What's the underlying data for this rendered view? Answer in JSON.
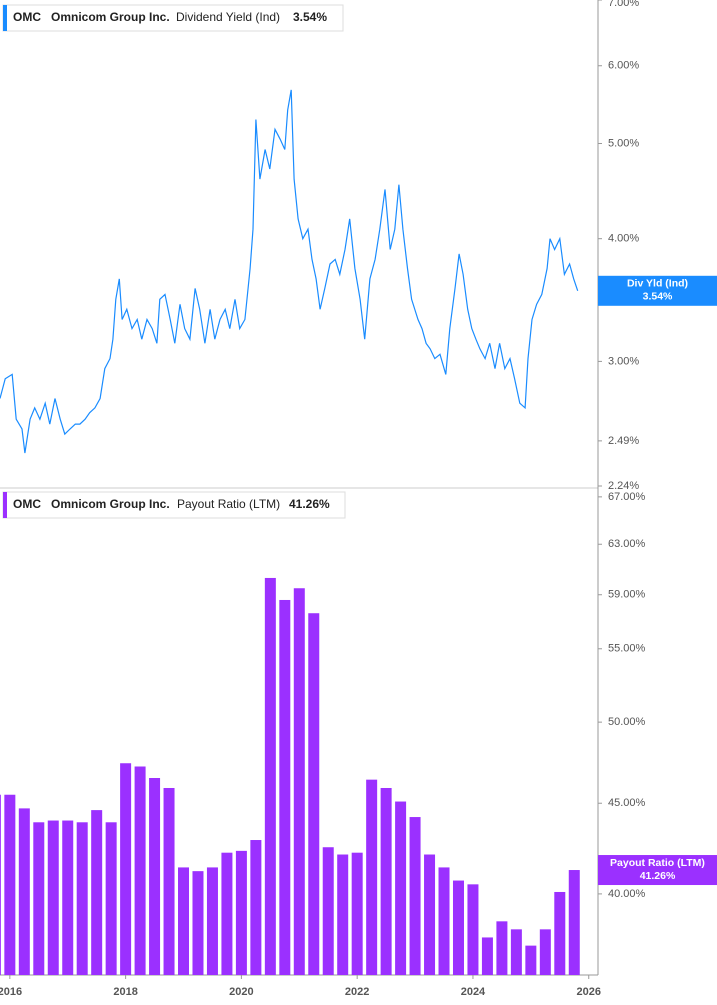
{
  "chart_data": [
    {
      "type": "line",
      "ticker": "OMC",
      "company": "Omnicom Group Inc.",
      "badge_label": "Div Yld (Ind)",
      "log_scale": true,
      "xlim": [
        2015.83,
        2026.16
      ],
      "ylim": [
        2.24,
        7.0
      ],
      "yticks": [
        {
          "value": 2.24,
          "label": "2.24%"
        },
        {
          "value": 2.49,
          "label": "2.49%"
        },
        {
          "value": 3.0,
          "label": "3.00%"
        },
        {
          "value": 4.0,
          "label": "4.00%"
        },
        {
          "value": 5.0,
          "label": "5.00%"
        },
        {
          "value": 6.0,
          "label": "6.00%"
        },
        {
          "value": 7.0,
          "label": "7.00%"
        }
      ],
      "x": [
        2015.83,
        2015.92,
        2016.04,
        2016.11,
        2016.21,
        2016.26,
        2016.35,
        2016.43,
        2016.52,
        2016.61,
        2016.69,
        2016.78,
        2016.87,
        2016.95,
        2017.04,
        2017.13,
        2017.21,
        2017.3,
        2017.38,
        2017.47,
        2017.56,
        2017.64,
        2017.73,
        2017.78,
        2017.83,
        2017.89,
        2017.94,
        2018.02,
        2018.11,
        2018.2,
        2018.28,
        2018.37,
        2018.46,
        2018.54,
        2018.59,
        2018.68,
        2018.77,
        2018.85,
        2018.94,
        2019.02,
        2019.11,
        2019.2,
        2019.28,
        2019.37,
        2019.46,
        2019.54,
        2019.63,
        2019.72,
        2019.8,
        2019.89,
        2019.97,
        2020.06,
        2020.15,
        2020.2,
        2020.25,
        2020.32,
        2020.41,
        2020.49,
        2020.58,
        2020.67,
        2020.75,
        2020.8,
        2020.86,
        2020.91,
        2020.98,
        2021.06,
        2021.15,
        2021.22,
        2021.29,
        2021.36,
        2021.44,
        2021.53,
        2021.62,
        2021.7,
        2021.79,
        2021.87,
        2021.96,
        2022.05,
        2022.13,
        2022.22,
        2022.31,
        2022.39,
        2022.48,
        2022.57,
        2022.65,
        2022.72,
        2022.79,
        2022.87,
        2022.94,
        2023.05,
        2023.12,
        2023.19,
        2023.26,
        2023.34,
        2023.43,
        2023.53,
        2023.6,
        2023.69,
        2023.76,
        2023.83,
        2023.91,
        2023.98,
        2024.05,
        2024.12,
        2024.21,
        2024.29,
        2024.38,
        2024.46,
        2024.55,
        2024.64,
        2024.72,
        2024.81,
        2024.9,
        2024.95,
        2025.02,
        2025.1,
        2025.19,
        2025.28,
        2025.33,
        2025.41,
        2025.5,
        2025.58,
        2025.67,
        2025.74,
        2025.81
      ],
      "series": [
        {
          "name": "Dividend Yield (Ind)",
          "color": "#1a8cff",
          "value_label": "3.54%",
          "values": [
            2.75,
            2.88,
            2.91,
            2.62,
            2.56,
            2.42,
            2.62,
            2.69,
            2.62,
            2.72,
            2.59,
            2.75,
            2.62,
            2.53,
            2.56,
            2.59,
            2.59,
            2.62,
            2.66,
            2.69,
            2.75,
            2.95,
            3.02,
            3.16,
            3.47,
            3.64,
            3.31,
            3.39,
            3.24,
            3.31,
            3.16,
            3.31,
            3.24,
            3.13,
            3.47,
            3.51,
            3.31,
            3.13,
            3.43,
            3.24,
            3.16,
            3.56,
            3.39,
            3.13,
            3.39,
            3.16,
            3.31,
            3.39,
            3.24,
            3.47,
            3.24,
            3.31,
            3.73,
            4.09,
            5.29,
            4.6,
            4.93,
            4.71,
            5.17,
            5.05,
            4.93,
            5.41,
            5.67,
            4.6,
            4.19,
            4.0,
            4.09,
            3.81,
            3.64,
            3.39,
            3.56,
            3.77,
            3.81,
            3.68,
            3.9,
            4.19,
            3.73,
            3.47,
            3.16,
            3.64,
            3.81,
            4.09,
            4.49,
            3.9,
            4.09,
            4.54,
            4.09,
            3.73,
            3.47,
            3.31,
            3.24,
            3.13,
            3.09,
            3.02,
            3.05,
            2.91,
            3.24,
            3.56,
            3.86,
            3.68,
            3.39,
            3.24,
            3.16,
            3.09,
            3.02,
            3.13,
            2.95,
            3.13,
            2.95,
            3.02,
            2.88,
            2.72,
            2.69,
            3.02,
            3.31,
            3.43,
            3.51,
            3.73,
            4.0,
            3.9,
            4.0,
            3.68,
            3.77,
            3.64,
            3.54
          ]
        }
      ]
    },
    {
      "type": "bar",
      "ticker": "OMC",
      "company": "Omnicom Group Inc.",
      "log_scale": true,
      "xlim": [
        2015.83,
        2026.16
      ],
      "ylim": [
        36.0,
        67.6
      ],
      "xticks": [
        2016,
        2018,
        2020,
        2022,
        2024,
        2026
      ],
      "yticks": [
        {
          "value": 40,
          "label": "40.00%"
        },
        {
          "value": 45,
          "label": "45.00%"
        },
        {
          "value": 50,
          "label": "50.00%"
        },
        {
          "value": 55,
          "label": "55.00%"
        },
        {
          "value": 59,
          "label": "59.00%"
        },
        {
          "value": 63,
          "label": "63.00%"
        },
        {
          "value": 67,
          "label": "67.00%"
        }
      ],
      "x": [
        2015.75,
        2016.0,
        2016.25,
        2016.5,
        2016.75,
        2017.0,
        2017.25,
        2017.5,
        2017.75,
        2018.0,
        2018.25,
        2018.5,
        2018.75,
        2019.0,
        2019.25,
        2019.5,
        2019.75,
        2020.0,
        2020.25,
        2020.5,
        2020.75,
        2021.0,
        2021.25,
        2021.5,
        2021.75,
        2022.0,
        2022.25,
        2022.5,
        2022.75,
        2023.0,
        2023.25,
        2023.5,
        2023.75,
        2024.0,
        2024.25,
        2024.5,
        2024.75,
        2025.0,
        2025.25,
        2025.5,
        2025.75
      ],
      "series": [
        {
          "name": "Payout Ratio (LTM)",
          "color": "#9b30ff",
          "value_label": "41.26%",
          "values": [
            45.5,
            45.5,
            44.7,
            43.9,
            44.0,
            44.0,
            43.9,
            44.6,
            43.9,
            47.4,
            47.2,
            46.5,
            45.9,
            41.4,
            41.2,
            41.4,
            42.2,
            42.3,
            42.9,
            60.3,
            58.6,
            59.5,
            57.6,
            42.5,
            42.1,
            42.2,
            46.4,
            45.9,
            45.1,
            44.2,
            42.1,
            41.4,
            40.7,
            40.5,
            37.8,
            38.6,
            38.2,
            37.4,
            38.2,
            40.1,
            41.26
          ]
        }
      ]
    }
  ]
}
